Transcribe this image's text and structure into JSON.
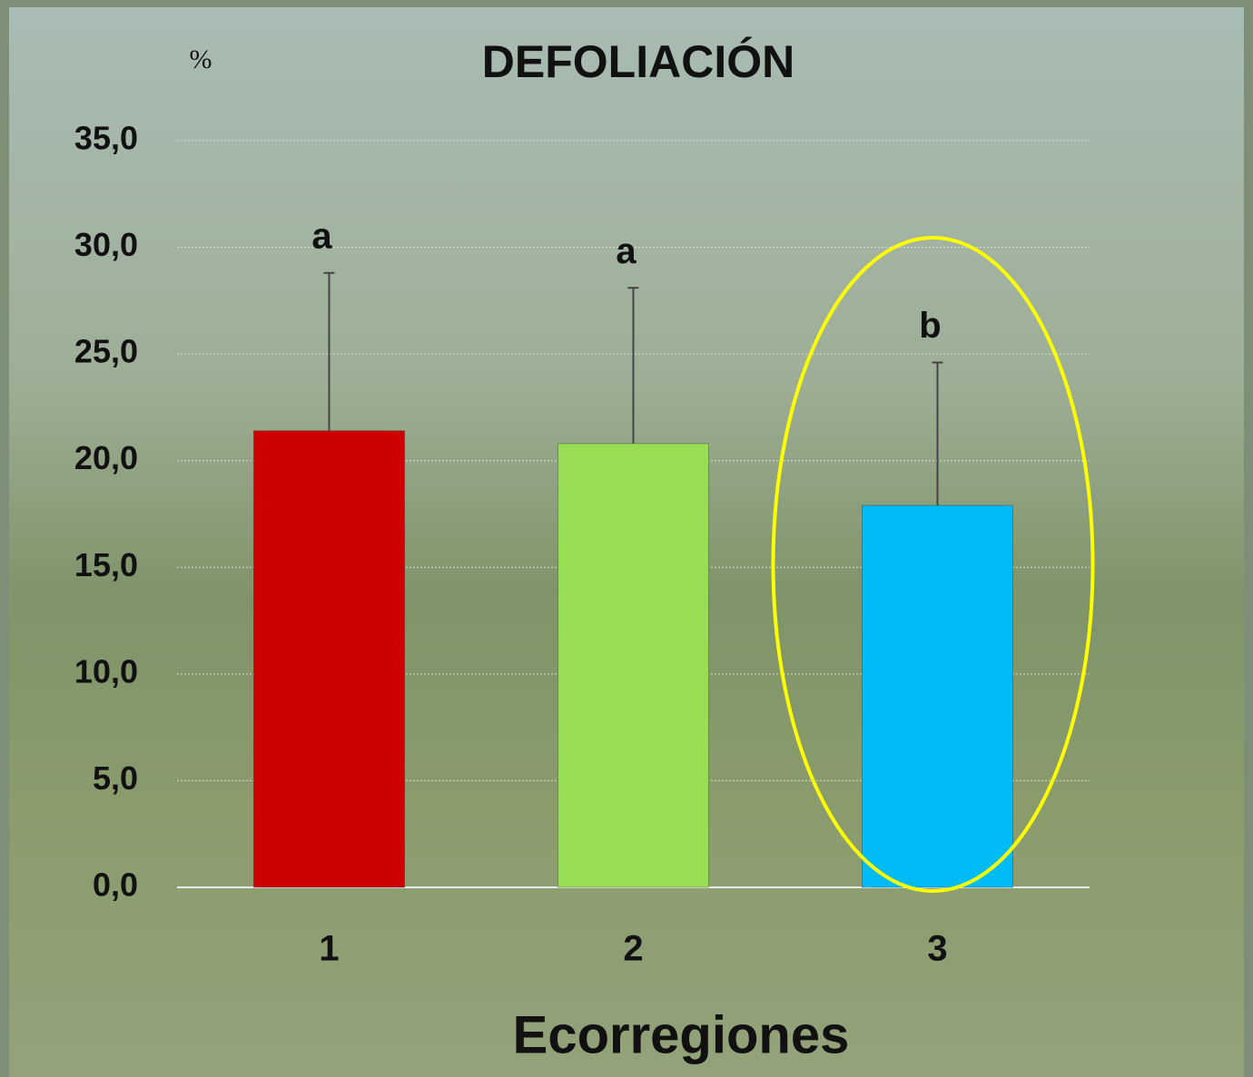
{
  "chart_data": {
    "type": "bar",
    "title": "DEFOLIACIÓN",
    "y_label": "%",
    "x_label": "Ecorregiones",
    "categories": [
      "1",
      "2",
      "3"
    ],
    "values": [
      21.4,
      20.8,
      17.9
    ],
    "errors": [
      7.4,
      7.3,
      6.7
    ],
    "annotations": [
      "a",
      "a",
      "b"
    ],
    "colors": [
      "#cc0000",
      "#99dd55",
      "#00bbf5"
    ],
    "ylim": [
      0,
      35
    ],
    "yticks": [
      {
        "value": 0,
        "label": "0,0"
      },
      {
        "value": 5,
        "label": "5,0"
      },
      {
        "value": 10,
        "label": "10,0"
      },
      {
        "value": 15,
        "label": "15,0"
      },
      {
        "value": 20,
        "label": "20,0"
      },
      {
        "value": 25,
        "label": "25,0"
      },
      {
        "value": 30,
        "label": "30,0"
      },
      {
        "value": 35,
        "label": "35,0"
      }
    ],
    "grid": true
  }
}
